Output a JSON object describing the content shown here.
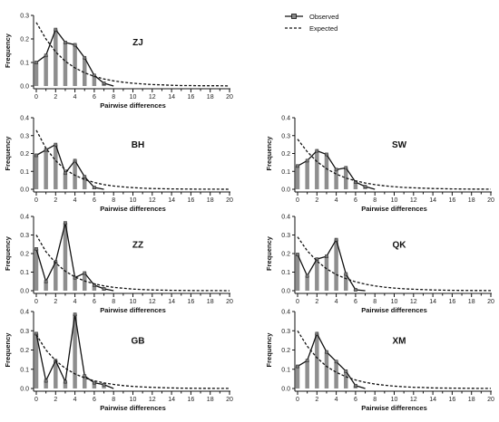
{
  "legend": {
    "observed": "Observed",
    "expected": "Expected"
  },
  "chart_data": [
    {
      "type": "bar",
      "label": "ZJ",
      "xlabel": "Pairwise differences",
      "ylabel": "Frequency",
      "ylim": [
        0,
        0.3
      ],
      "yticks": [
        "0.0",
        "0.1",
        "0.2",
        "0.3"
      ],
      "xlim": [
        0,
        20
      ],
      "xticks": [
        "0",
        "2",
        "4",
        "6",
        "8",
        "10",
        "12",
        "14",
        "16",
        "18",
        "20"
      ],
      "x": [
        0,
        1,
        2,
        3,
        4,
        5,
        6,
        7,
        8,
        9,
        10,
        11,
        12,
        13,
        14,
        15,
        16,
        17,
        18,
        19,
        20
      ],
      "series": [
        {
          "name": "Observed",
          "values": [
            0.1,
            0.13,
            0.24,
            0.185,
            0.175,
            0.12,
            0.045,
            0.012,
            0,
            0,
            0,
            0,
            0,
            0,
            0,
            0,
            0,
            0,
            0,
            0,
            0
          ]
        },
        {
          "name": "Expected",
          "values": [
            0.27,
            0.2,
            0.145,
            0.105,
            0.077,
            0.056,
            0.041,
            0.03,
            0.022,
            0.016,
            0.012,
            0.009,
            0.006,
            0.005,
            0.003,
            0.002,
            0.002,
            0.001,
            0.001,
            0.001,
            0.0005
          ]
        }
      ]
    },
    {
      "type": "bar",
      "label": "BH",
      "xlabel": "Pairwise differences",
      "ylabel": "Frequency",
      "ylim": [
        0,
        0.4
      ],
      "yticks": [
        "0.0",
        "0.1",
        "0.2",
        "0.3",
        "0.4"
      ],
      "xlim": [
        0,
        20
      ],
      "xticks": [
        "0",
        "2",
        "4",
        "6",
        "8",
        "10",
        "12",
        "14",
        "16",
        "18",
        "20"
      ],
      "x": [
        0,
        1,
        2,
        3,
        4,
        5,
        6,
        7,
        8,
        9,
        10,
        11,
        12,
        13,
        14,
        15,
        16,
        17,
        18,
        19,
        20
      ],
      "series": [
        {
          "name": "Observed",
          "values": [
            0.19,
            0.22,
            0.25,
            0.09,
            0.16,
            0.07,
            0.01,
            0,
            0,
            0,
            0,
            0,
            0,
            0,
            0,
            0,
            0,
            0,
            0,
            0,
            0
          ]
        },
        {
          "name": "Expected",
          "values": [
            0.33,
            0.23,
            0.16,
            0.11,
            0.078,
            0.054,
            0.038,
            0.026,
            0.018,
            0.013,
            0.009,
            0.006,
            0.004,
            0.003,
            0.002,
            0.0015,
            0.001,
            0.0007,
            0.0005,
            0.0003,
            0.0002
          ]
        }
      ]
    },
    {
      "type": "bar",
      "label": "SW",
      "xlabel": "Pairwise differences",
      "ylabel": "Frequency",
      "ylim": [
        0,
        0.4
      ],
      "yticks": [
        "0.0",
        "0.1",
        "0.2",
        "0.3",
        "0.4"
      ],
      "xlim": [
        0,
        20
      ],
      "xticks": [
        "0",
        "2",
        "4",
        "6",
        "8",
        "10",
        "12",
        "14",
        "16",
        "18",
        "20"
      ],
      "x": [
        0,
        1,
        2,
        3,
        4,
        5,
        6,
        7,
        8,
        9,
        10,
        11,
        12,
        13,
        14,
        15,
        16,
        17,
        18,
        19,
        20
      ],
      "series": [
        {
          "name": "Observed",
          "values": [
            0.13,
            0.16,
            0.215,
            0.195,
            0.11,
            0.12,
            0.04,
            0.015,
            0,
            0,
            0,
            0,
            0,
            0,
            0,
            0,
            0,
            0,
            0,
            0,
            0
          ]
        },
        {
          "name": "Expected",
          "values": [
            0.28,
            0.21,
            0.155,
            0.115,
            0.085,
            0.063,
            0.047,
            0.035,
            0.026,
            0.019,
            0.014,
            0.01,
            0.008,
            0.006,
            0.004,
            0.003,
            0.002,
            0.0017,
            0.0012,
            0.0009,
            0.0007
          ]
        }
      ]
    },
    {
      "type": "bar",
      "label": "ZZ",
      "xlabel": "Pairwise differences",
      "ylabel": "Frequency",
      "ylim": [
        0,
        0.4
      ],
      "yticks": [
        "0.0",
        "0.1",
        "0.2",
        "0.3",
        "0.4"
      ],
      "xlim": [
        0,
        20
      ],
      "xticks": [
        "0",
        "2",
        "4",
        "6",
        "8",
        "10",
        "12",
        "14",
        "16",
        "18",
        "20"
      ],
      "x": [
        0,
        1,
        2,
        3,
        4,
        5,
        6,
        7,
        8,
        9,
        10,
        11,
        12,
        13,
        14,
        15,
        16,
        17,
        18,
        19,
        20
      ],
      "series": [
        {
          "name": "Observed",
          "values": [
            0.225,
            0.05,
            0.155,
            0.365,
            0.07,
            0.095,
            0.03,
            0.01,
            0,
            0,
            0,
            0,
            0,
            0,
            0,
            0,
            0,
            0,
            0,
            0,
            0
          ]
        },
        {
          "name": "Expected",
          "values": [
            0.3,
            0.21,
            0.15,
            0.105,
            0.074,
            0.052,
            0.037,
            0.026,
            0.018,
            0.013,
            0.009,
            0.006,
            0.004,
            0.003,
            0.002,
            0.0015,
            0.001,
            0.0007,
            0.0005,
            0.0003,
            0.0002
          ]
        }
      ]
    },
    {
      "type": "bar",
      "label": "QK",
      "xlabel": "Pairwise differences",
      "ylabel": "Frequency",
      "ylim": [
        0,
        0.4
      ],
      "yticks": [
        "0.0",
        "0.1",
        "0.2",
        "0.3",
        "0.4"
      ],
      "xlim": [
        0,
        20
      ],
      "xticks": [
        "0",
        "2",
        "4",
        "6",
        "8",
        "10",
        "12",
        "14",
        "16",
        "18",
        "20"
      ],
      "x": [
        0,
        1,
        2,
        3,
        4,
        5,
        6,
        7,
        8,
        9,
        10,
        11,
        12,
        13,
        14,
        15,
        16,
        17,
        18,
        19,
        20
      ],
      "series": [
        {
          "name": "Observed",
          "values": [
            0.195,
            0.08,
            0.17,
            0.185,
            0.275,
            0.09,
            0.005,
            0,
            0,
            0,
            0,
            0,
            0,
            0,
            0,
            0,
            0,
            0,
            0,
            0,
            0
          ]
        },
        {
          "name": "Expected",
          "values": [
            0.29,
            0.215,
            0.16,
            0.118,
            0.087,
            0.065,
            0.048,
            0.035,
            0.026,
            0.019,
            0.014,
            0.01,
            0.008,
            0.006,
            0.004,
            0.003,
            0.002,
            0.0017,
            0.0012,
            0.0009,
            0.0007
          ]
        }
      ]
    },
    {
      "type": "bar",
      "label": "GB",
      "xlabel": "Pairwise differences",
      "ylabel": "Frequency",
      "ylim": [
        0,
        0.4
      ],
      "yticks": [
        "0.0",
        "0.1",
        "0.2",
        "0.3",
        "0.4"
      ],
      "xlim": [
        0,
        20
      ],
      "xticks": [
        "0",
        "2",
        "4",
        "6",
        "8",
        "10",
        "12",
        "14",
        "16",
        "18",
        "20"
      ],
      "x": [
        0,
        1,
        2,
        3,
        4,
        5,
        6,
        7,
        8,
        9,
        10,
        11,
        12,
        13,
        14,
        15,
        16,
        17,
        18,
        19,
        20
      ],
      "series": [
        {
          "name": "Observed",
          "values": [
            0.285,
            0.04,
            0.145,
            0.035,
            0.385,
            0.065,
            0.03,
            0.02,
            0,
            0,
            0,
            0,
            0,
            0,
            0,
            0,
            0,
            0,
            0,
            0,
            0
          ]
        },
        {
          "name": "Expected",
          "values": [
            0.28,
            0.2,
            0.145,
            0.105,
            0.076,
            0.055,
            0.04,
            0.029,
            0.021,
            0.015,
            0.011,
            0.008,
            0.006,
            0.004,
            0.003,
            0.002,
            0.0015,
            0.001,
            0.0008,
            0.0006,
            0.0004
          ]
        }
      ]
    },
    {
      "type": "bar",
      "label": "XM",
      "xlabel": "Pairwise differences",
      "ylabel": "Frequency",
      "ylim": [
        0,
        0.4
      ],
      "yticks": [
        "0.0",
        "0.1",
        "0.2",
        "0.3",
        "0.4"
      ],
      "xlim": [
        0,
        20
      ],
      "xticks": [
        "0",
        "2",
        "4",
        "6",
        "8",
        "10",
        "12",
        "14",
        "16",
        "18",
        "20"
      ],
      "x": [
        0,
        1,
        2,
        3,
        4,
        5,
        6,
        7,
        8,
        9,
        10,
        11,
        12,
        13,
        14,
        15,
        16,
        17,
        18,
        19,
        20
      ],
      "series": [
        {
          "name": "Observed",
          "values": [
            0.115,
            0.145,
            0.285,
            0.19,
            0.14,
            0.09,
            0.015,
            0,
            0,
            0,
            0,
            0,
            0,
            0,
            0,
            0,
            0,
            0,
            0,
            0,
            0
          ]
        },
        {
          "name": "Expected",
          "values": [
            0.3,
            0.22,
            0.16,
            0.115,
            0.084,
            0.061,
            0.044,
            0.032,
            0.023,
            0.017,
            0.012,
            0.009,
            0.006,
            0.005,
            0.003,
            0.0025,
            0.0018,
            0.0013,
            0.0009,
            0.0007,
            0.0005
          ]
        }
      ]
    }
  ]
}
